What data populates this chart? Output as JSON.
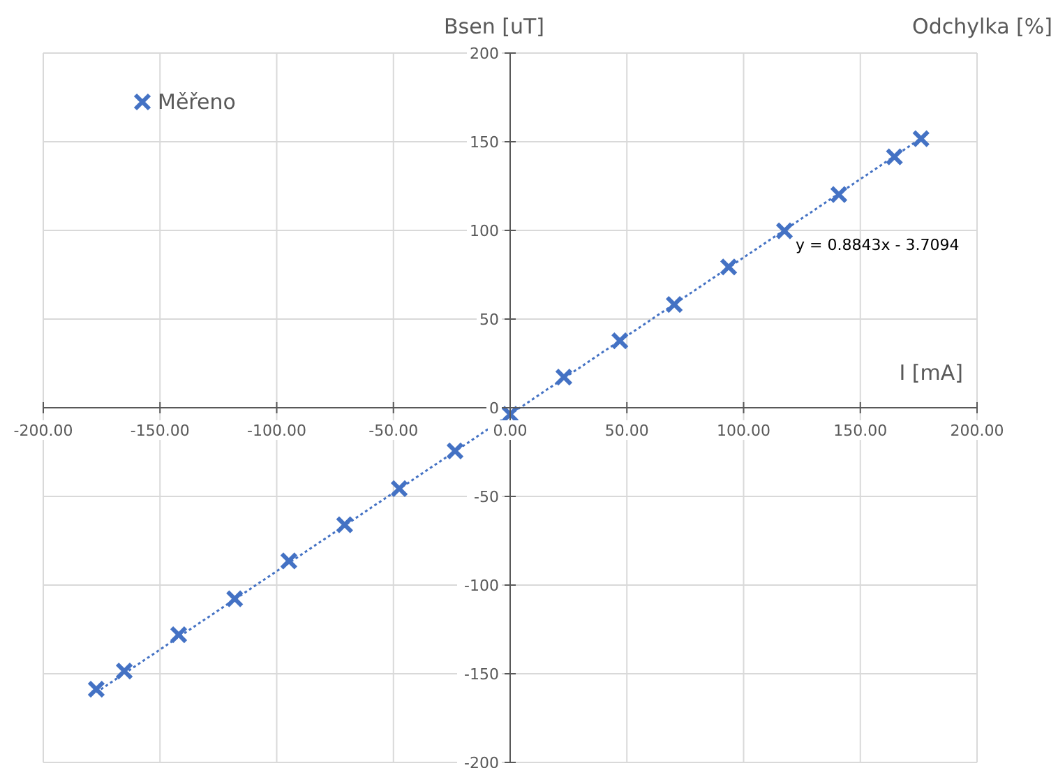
{
  "chart_data": {
    "type": "scatter",
    "ylabel": "Bsen [uT]",
    "xlabel": "I [mA]",
    "annotations": [
      "Odchylka [%]",
      {
        "text": "y = 0.8843x - 3.7094",
        "x": 117.5,
        "y": 99.8
      }
    ],
    "x": [
      -177.3,
      -165.3,
      -142,
      -118,
      -94.8,
      -70.9,
      -47.5,
      -23.6,
      0,
      23,
      47,
      70.3,
      93.6,
      117.5,
      140.8,
      164.6,
      176
    ],
    "series": [
      {
        "name": "Měřeno",
        "color": "#4472c4",
        "marker": "cross",
        "values": [
          -158.7,
          -148.5,
          -128,
          -107.7,
          -86.4,
          -66,
          -45.6,
          -24.4,
          -3.7,
          17.3,
          37.7,
          58.2,
          79.4,
          99.8,
          120.2,
          141.5,
          151.7
        ]
      },
      {
        "type": "line",
        "color": "#4472c4",
        "line_style": "dotted",
        "marker": "none",
        "x": [
          -177.3,
          176
        ],
        "values": [
          -160.5,
          151.9
        ]
      }
    ],
    "xlim": [
      -200,
      200
    ],
    "xticks": [
      {
        "value": -200,
        "label": "-200.00"
      },
      {
        "value": -150,
        "label": "-150.00"
      },
      {
        "value": -100,
        "label": "-100.00"
      },
      {
        "value": -50,
        "label": "-50.00"
      },
      {
        "value": 0,
        "label": "0.00"
      },
      {
        "value": 50,
        "label": "50.00"
      },
      {
        "value": 100,
        "label": "100.00"
      },
      {
        "value": 150,
        "label": "150.00"
      },
      {
        "value": 200,
        "label": "200.00"
      }
    ],
    "ylim": [
      -200,
      200
    ],
    "yticks": [
      -200,
      -150,
      -100,
      -50,
      0,
      50,
      100,
      150,
      200
    ],
    "grid": true,
    "legend": "top left"
  }
}
